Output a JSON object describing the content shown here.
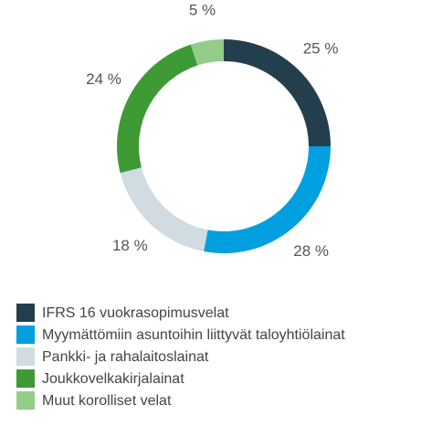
{
  "chart_data": {
    "type": "pie",
    "categories": [
      "IFRS 16 vuokrasopimusvelat",
      "Myymättömiin asuntoihin liittyvät taloyhtiölainat",
      "Pankki- ja rahalaitoslainat",
      "Joukkovelkakirjalainat",
      "Muut korolliset velat"
    ],
    "values": [
      25,
      28,
      18,
      24,
      5
    ],
    "value_labels": [
      "25 %",
      "28 %",
      "18 %",
      "24 %",
      "5 %"
    ],
    "colors": [
      "#233f4e",
      "#009fdf",
      "#d0dbe2",
      "#3d9a35",
      "#94cc8a"
    ],
    "donut": true
  }
}
